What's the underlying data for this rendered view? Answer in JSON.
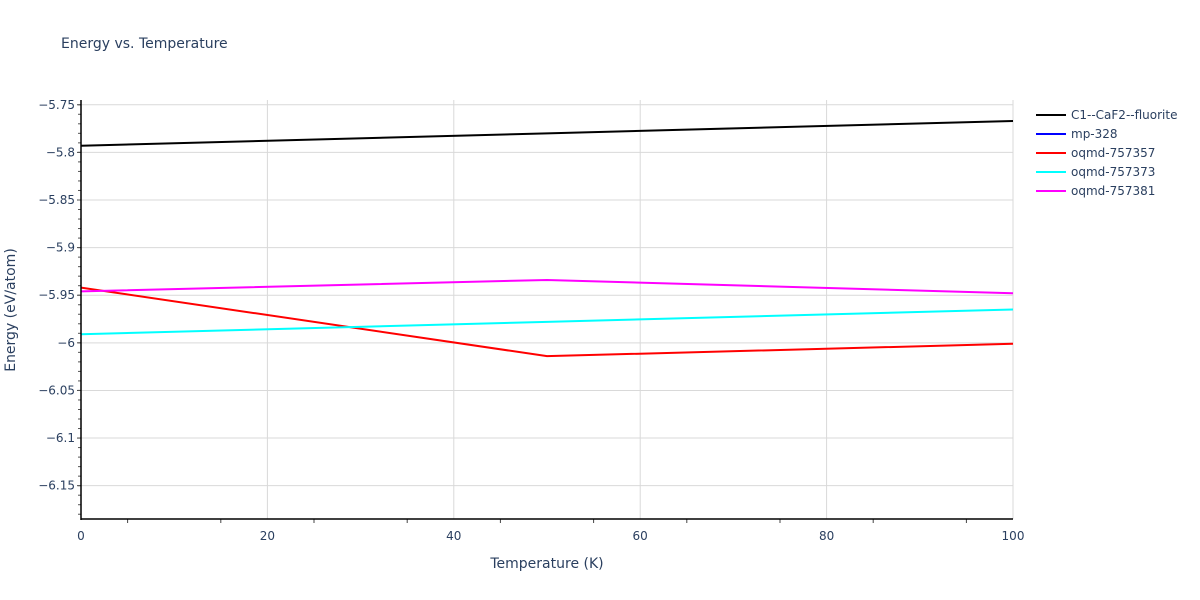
{
  "chart_data": {
    "type": "line",
    "title": "Energy vs. Temperature",
    "xlabel": "Temperature (K)",
    "ylabel": "Energy (eV/atom)",
    "xlim": [
      0,
      100
    ],
    "ylim": [
      -6.185,
      -5.745
    ],
    "x_ticks": [
      0,
      20,
      40,
      60,
      80,
      100
    ],
    "y_ticks": [
      -5.75,
      -5.8,
      -5.85,
      -5.9,
      -5.95,
      -6,
      -6.05,
      -6.1,
      -6.15
    ],
    "y_tick_labels": [
      "−5.75",
      "−5.8",
      "−5.85",
      "−5.9",
      "−5.95",
      "−6",
      "−6.05",
      "−6.1",
      "−6.15"
    ],
    "grid": true,
    "legend_position": "right",
    "x": [
      0,
      50,
      100
    ],
    "series": [
      {
        "name": "C1--CaF2--fluorite",
        "color": "#000000",
        "values": [
          -5.793,
          -5.78,
          -5.767
        ]
      },
      {
        "name": "mp-328",
        "color": "#0000ff",
        "values": []
      },
      {
        "name": "oqmd-757357",
        "color": "#ff0000",
        "values": [
          -5.942,
          -6.014,
          -6.001
        ]
      },
      {
        "name": "oqmd-757373",
        "color": "#00ffff",
        "values": [
          -5.991,
          -5.978,
          -5.965
        ]
      },
      {
        "name": "oqmd-757381",
        "color": "#ff00ff",
        "values": [
          -5.946,
          -5.934,
          -5.948
        ]
      }
    ]
  }
}
